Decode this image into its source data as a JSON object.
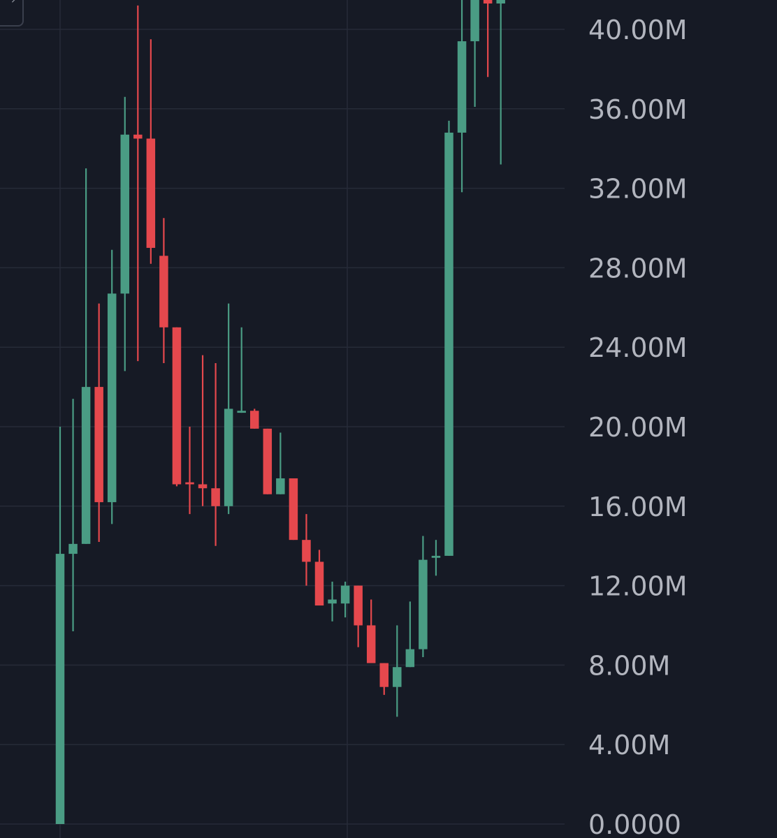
{
  "colors": {
    "background": "#161a25",
    "up": "#4a9c84",
    "down": "#e5484d",
    "grid": "#262b38",
    "axis_text": "#b2b5be"
  },
  "corner_button": {
    "icon": "expand-icon"
  },
  "chart_data": {
    "type": "candlestick",
    "title": "",
    "xlabel": "",
    "ylabel": "",
    "ylim": [
      0,
      41.5
    ],
    "y_unit": "M",
    "grid": true,
    "y_ticks": [
      {
        "value": 0,
        "label": "0.0000"
      },
      {
        "value": 4,
        "label": "4.00M"
      },
      {
        "value": 8,
        "label": "8.00M"
      },
      {
        "value": 12,
        "label": "12.00M"
      },
      {
        "value": 16,
        "label": "16.00M"
      },
      {
        "value": 20,
        "label": "20.00M"
      },
      {
        "value": 24,
        "label": "24.00M"
      },
      {
        "value": 28,
        "label": "28.00M"
      },
      {
        "value": 32,
        "label": "32.00M"
      },
      {
        "value": 36,
        "label": "36.00M"
      },
      {
        "value": 40,
        "label": "40.00M"
      }
    ],
    "candles": [
      {
        "open": 0.0,
        "high": 20.0,
        "low": 0.0,
        "close": 13.6
      },
      {
        "open": 13.6,
        "high": 21.4,
        "low": 9.7,
        "close": 14.1
      },
      {
        "open": 14.1,
        "high": 33.0,
        "low": 14.1,
        "close": 22.0
      },
      {
        "open": 22.0,
        "high": 26.2,
        "low": 14.2,
        "close": 16.2
      },
      {
        "open": 16.2,
        "high": 28.9,
        "low": 15.1,
        "close": 26.7
      },
      {
        "open": 26.7,
        "high": 36.6,
        "low": 22.8,
        "close": 34.7
      },
      {
        "open": 34.7,
        "high": 41.2,
        "low": 23.3,
        "close": 34.5
      },
      {
        "open": 34.5,
        "high": 39.5,
        "low": 28.2,
        "close": 29.0
      },
      {
        "open": 28.6,
        "high": 30.5,
        "low": 23.2,
        "close": 25.0
      },
      {
        "open": 25.0,
        "high": 25.0,
        "low": 17.0,
        "close": 17.1
      },
      {
        "open": 17.2,
        "high": 20.0,
        "low": 15.6,
        "close": 17.1
      },
      {
        "open": 17.1,
        "high": 23.6,
        "low": 16.0,
        "close": 16.9
      },
      {
        "open": 16.9,
        "high": 23.2,
        "low": 14.0,
        "close": 16.0
      },
      {
        "open": 16.0,
        "high": 26.2,
        "low": 15.6,
        "close": 20.9
      },
      {
        "open": 20.7,
        "high": 25.0,
        "low": 20.7,
        "close": 20.8
      },
      {
        "open": 20.8,
        "high": 20.9,
        "low": 19.9,
        "close": 19.9
      },
      {
        "open": 19.9,
        "high": 19.9,
        "low": 16.6,
        "close": 16.6
      },
      {
        "open": 16.6,
        "high": 19.7,
        "low": 16.6,
        "close": 17.4
      },
      {
        "open": 17.4,
        "high": 17.4,
        "low": 14.3,
        "close": 14.3
      },
      {
        "open": 14.3,
        "high": 15.6,
        "low": 12.0,
        "close": 13.2
      },
      {
        "open": 13.2,
        "high": 13.8,
        "low": 11.0,
        "close": 11.0
      },
      {
        "open": 11.1,
        "high": 12.2,
        "low": 10.2,
        "close": 11.3
      },
      {
        "open": 11.1,
        "high": 12.2,
        "low": 10.4,
        "close": 12.0
      },
      {
        "open": 12.0,
        "high": 12.0,
        "low": 8.9,
        "close": 10.0
      },
      {
        "open": 10.0,
        "high": 11.3,
        "low": 8.1,
        "close": 8.1
      },
      {
        "open": 8.1,
        "high": 8.1,
        "low": 6.5,
        "close": 6.9
      },
      {
        "open": 6.9,
        "high": 10.0,
        "low": 5.4,
        "close": 7.9
      },
      {
        "open": 7.9,
        "high": 11.2,
        "low": 7.9,
        "close": 8.8
      },
      {
        "open": 8.8,
        "high": 14.5,
        "low": 8.4,
        "close": 13.3
      },
      {
        "open": 13.4,
        "high": 14.3,
        "low": 12.5,
        "close": 13.5
      },
      {
        "open": 13.5,
        "high": 35.4,
        "low": 13.5,
        "close": 34.8
      },
      {
        "open": 34.8,
        "high": 41.5,
        "low": 31.8,
        "close": 39.4
      },
      {
        "open": 39.4,
        "high": 41.5,
        "low": 36.1,
        "close": 41.5
      },
      {
        "open": 41.5,
        "high": 41.5,
        "low": 37.6,
        "close": 41.3
      },
      {
        "open": 41.3,
        "high": 41.5,
        "low": 33.2,
        "close": 41.5
      }
    ]
  }
}
